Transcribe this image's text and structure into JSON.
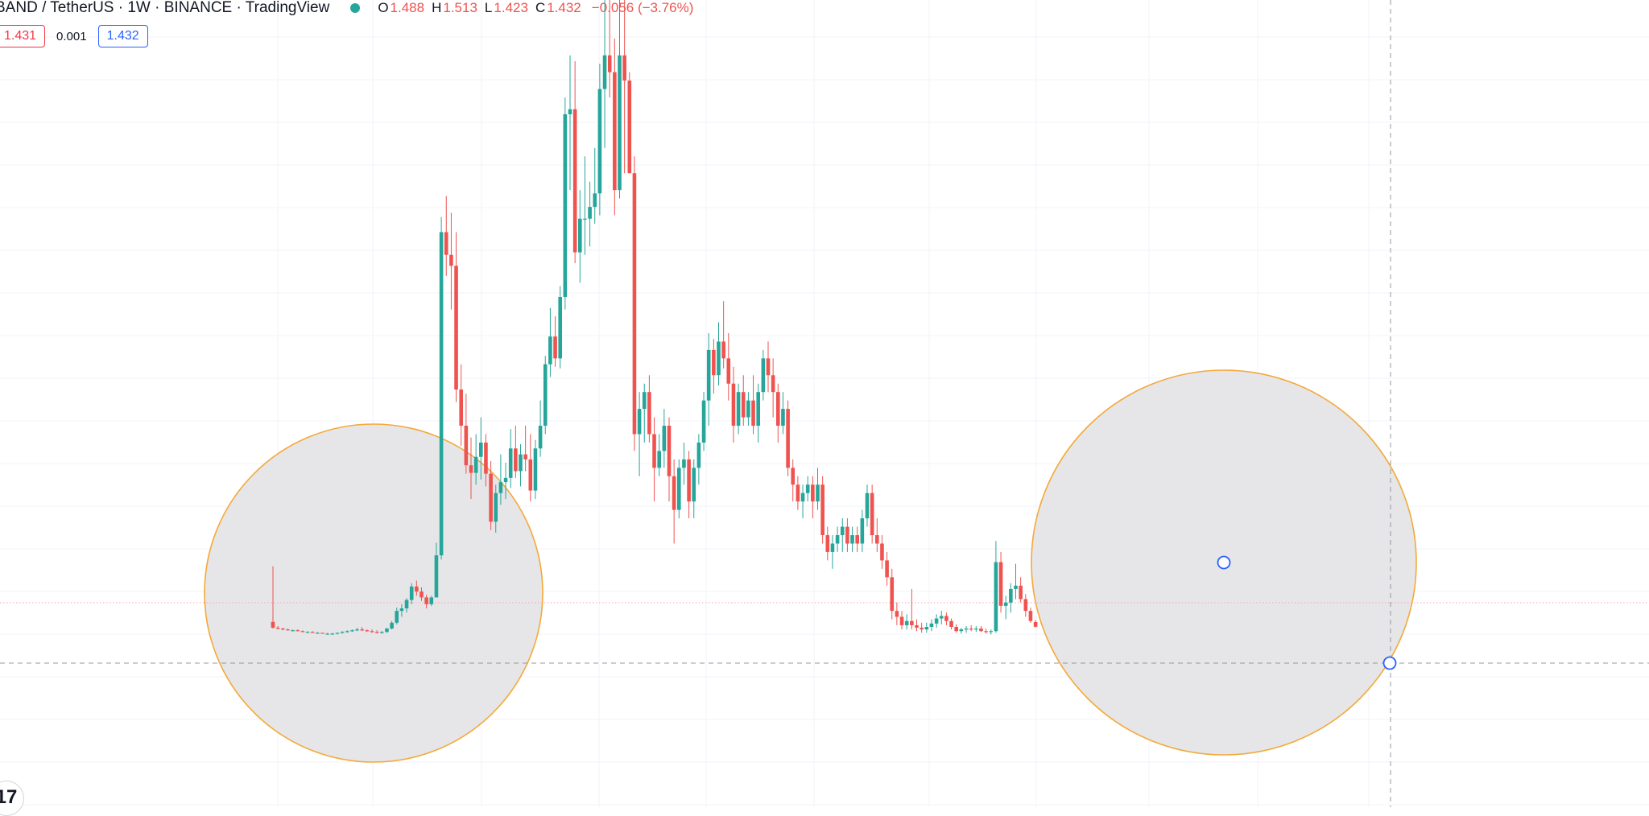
{
  "header": {
    "title": "BAND / TetherUS · 1W · BINANCE · TradingView",
    "status_color": "#26a69a",
    "ohlc": {
      "open_label": "O",
      "open": "1.488",
      "high_label": "H",
      "high": "1.513",
      "low_label": "L",
      "low": "1.423",
      "close_label": "C",
      "close": "1.432",
      "change": "−0.056 (−3.76%)"
    }
  },
  "price_boxes": {
    "bid": "1.431",
    "spread": "0.001",
    "ask": "1.432"
  },
  "colors": {
    "up": "#26a69a",
    "down": "#ef5350",
    "grid": "#f0f3fa",
    "circle_fill": "#e3e3e6",
    "circle_stroke": "#f4a93a",
    "handle": "#2962ff",
    "crosshair": "#9598a1",
    "price_line": "#f7a6a6",
    "text": "#131722",
    "bid_color": "#f23645",
    "ask_color": "#2962ff"
  },
  "logo": {
    "icon": "tradingview-logo-icon",
    "text": "17"
  },
  "chart_data": {
    "type": "candlestick",
    "candles": [
      [
        1.49,
        2.15,
        1.41,
        1.42
      ],
      [
        1.42,
        1.44,
        1.4,
        1.41
      ],
      [
        1.41,
        1.42,
        1.39,
        1.4
      ],
      [
        1.4,
        1.41,
        1.39,
        1.39
      ],
      [
        1.39,
        1.4,
        1.38,
        1.39
      ],
      [
        1.39,
        1.4,
        1.38,
        1.38
      ],
      [
        1.38,
        1.39,
        1.37,
        1.37
      ],
      [
        1.37,
        1.38,
        1.36,
        1.37
      ],
      [
        1.37,
        1.38,
        1.36,
        1.36
      ],
      [
        1.36,
        1.37,
        1.35,
        1.36
      ],
      [
        1.36,
        1.36,
        1.35,
        1.35
      ],
      [
        1.35,
        1.36,
        1.34,
        1.35
      ],
      [
        1.35,
        1.36,
        1.34,
        1.35
      ],
      [
        1.35,
        1.36,
        1.34,
        1.36
      ],
      [
        1.36,
        1.38,
        1.35,
        1.37
      ],
      [
        1.37,
        1.39,
        1.36,
        1.38
      ],
      [
        1.38,
        1.4,
        1.37,
        1.39
      ],
      [
        1.39,
        1.42,
        1.38,
        1.4
      ],
      [
        1.4,
        1.43,
        1.38,
        1.39
      ],
      [
        1.39,
        1.4,
        1.37,
        1.38
      ],
      [
        1.38,
        1.4,
        1.36,
        1.37
      ],
      [
        1.37,
        1.39,
        1.35,
        1.36
      ],
      [
        1.36,
        1.38,
        1.35,
        1.37
      ],
      [
        1.37,
        1.42,
        1.36,
        1.41
      ],
      [
        1.41,
        1.5,
        1.4,
        1.48
      ],
      [
        1.48,
        1.66,
        1.46,
        1.62
      ],
      [
        1.62,
        1.7,
        1.55,
        1.65
      ],
      [
        1.65,
        1.77,
        1.6,
        1.75
      ],
      [
        1.75,
        1.95,
        1.7,
        1.91
      ],
      [
        1.91,
        1.98,
        1.8,
        1.85
      ],
      [
        1.85,
        1.9,
        1.74,
        1.78
      ],
      [
        1.78,
        1.81,
        1.65,
        1.7
      ],
      [
        1.7,
        1.8,
        1.68,
        1.78
      ],
      [
        1.78,
        2.43,
        1.78,
        2.28
      ],
      [
        2.28,
        6.3,
        2.23,
        6.12
      ],
      [
        6.12,
        6.55,
        5.6,
        5.85
      ],
      [
        5.85,
        6.35,
        5.2,
        5.72
      ],
      [
        5.72,
        6.12,
        4.1,
        4.25
      ],
      [
        4.25,
        4.55,
        3.58,
        3.82
      ],
      [
        3.82,
        4.2,
        3.25,
        3.35
      ],
      [
        3.35,
        3.68,
        2.95,
        3.26
      ],
      [
        3.26,
        3.72,
        3.12,
        3.45
      ],
      [
        3.45,
        3.92,
        3.18,
        3.62
      ],
      [
        3.62,
        3.72,
        3.1,
        3.25
      ],
      [
        3.25,
        3.4,
        2.58,
        2.68
      ],
      [
        2.68,
        3.12,
        2.55,
        3.02
      ],
      [
        3.02,
        3.48,
        2.88,
        3.15
      ],
      [
        3.15,
        3.38,
        2.95,
        3.2
      ],
      [
        3.2,
        3.78,
        3.08,
        3.55
      ],
      [
        3.55,
        3.82,
        3.2,
        3.28
      ],
      [
        3.28,
        3.6,
        3.1,
        3.48
      ],
      [
        3.48,
        3.82,
        3.28,
        3.42
      ],
      [
        3.42,
        3.72,
        2.92,
        3.05
      ],
      [
        3.05,
        3.65,
        2.95,
        3.55
      ],
      [
        3.55,
        4.12,
        3.45,
        3.82
      ],
      [
        3.82,
        4.65,
        3.72,
        4.55
      ],
      [
        4.55,
        5.22,
        4.4,
        4.88
      ],
      [
        4.88,
        5.12,
        4.52,
        4.62
      ],
      [
        4.62,
        5.48,
        4.5,
        5.35
      ],
      [
        5.35,
        7.72,
        5.2,
        7.52
      ],
      [
        7.52,
        8.22,
        6.62,
        7.58
      ],
      [
        7.58,
        8.15,
        5.75,
        5.88
      ],
      [
        5.88,
        6.62,
        5.52,
        6.28
      ],
      [
        6.28,
        7.02,
        5.85,
        6.28
      ],
      [
        6.28,
        6.72,
        5.95,
        6.42
      ],
      [
        6.42,
        7.12,
        6.22,
        6.58
      ],
      [
        6.58,
        8.12,
        6.32,
        7.82
      ],
      [
        7.82,
        9.02,
        7.12,
        8.22
      ],
      [
        8.22,
        9.55,
        7.72,
        8.02
      ],
      [
        8.02,
        8.42,
        6.32,
        6.62
      ],
      [
        6.62,
        9.12,
        6.52,
        8.22
      ],
      [
        8.22,
        9.42,
        6.82,
        7.92
      ],
      [
        7.92,
        8.02,
        6.82,
        6.82
      ],
      [
        6.82,
        7.02,
        3.52,
        3.72
      ],
      [
        3.72,
        4.22,
        3.22,
        4.02
      ],
      [
        4.02,
        4.32,
        3.62,
        4.22
      ],
      [
        4.22,
        4.42,
        3.62,
        3.72
      ],
      [
        3.72,
        3.92,
        2.92,
        3.32
      ],
      [
        3.32,
        3.72,
        3.22,
        3.52
      ],
      [
        3.52,
        4.02,
        3.32,
        3.82
      ],
      [
        3.82,
        3.92,
        2.92,
        3.22
      ],
      [
        3.22,
        3.42,
        2.42,
        2.82
      ],
      [
        2.82,
        3.42,
        2.72,
        3.32
      ],
      [
        3.32,
        3.62,
        3.12,
        3.42
      ],
      [
        3.42,
        3.52,
        2.72,
        2.92
      ],
      [
        2.92,
        3.42,
        2.72,
        3.32
      ],
      [
        3.32,
        3.72,
        3.12,
        3.62
      ],
      [
        3.62,
        4.22,
        3.52,
        4.12
      ],
      [
        4.12,
        4.92,
        3.82,
        4.72
      ],
      [
        4.72,
        4.85,
        4.2,
        4.42
      ],
      [
        4.42,
        5.05,
        4.3,
        4.82
      ],
      [
        4.82,
        5.3,
        4.5,
        4.62
      ],
      [
        4.62,
        4.92,
        4.12,
        4.32
      ],
      [
        4.32,
        4.52,
        3.62,
        3.82
      ],
      [
        3.82,
        4.32,
        3.72,
        4.22
      ],
      [
        4.22,
        4.42,
        3.82,
        3.92
      ],
      [
        3.92,
        4.22,
        3.82,
        4.12
      ],
      [
        4.12,
        4.42,
        3.72,
        3.82
      ],
      [
        3.82,
        4.32,
        3.62,
        4.22
      ],
      [
        4.22,
        4.72,
        4.12,
        4.62
      ],
      [
        4.62,
        4.82,
        4.22,
        4.42
      ],
      [
        4.42,
        4.62,
        3.92,
        4.22
      ],
      [
        4.22,
        4.32,
        3.62,
        3.82
      ],
      [
        3.82,
        4.22,
        3.72,
        4.02
      ],
      [
        4.02,
        4.12,
        3.22,
        3.32
      ],
      [
        3.32,
        3.42,
        2.92,
        3.12
      ],
      [
        3.12,
        3.22,
        2.82,
        2.92
      ],
      [
        2.92,
        3.12,
        2.72,
        3.02
      ],
      [
        3.02,
        3.22,
        2.92,
        3.12
      ],
      [
        3.12,
        3.22,
        2.72,
        2.92
      ],
      [
        2.92,
        3.32,
        2.82,
        3.12
      ],
      [
        3.12,
        3.22,
        2.42,
        2.52
      ],
      [
        2.52,
        2.62,
        2.22,
        2.32
      ],
      [
        2.32,
        2.52,
        2.12,
        2.42
      ],
      [
        2.42,
        2.62,
        2.32,
        2.52
      ],
      [
        2.52,
        2.72,
        2.32,
        2.62
      ],
      [
        2.62,
        2.72,
        2.32,
        2.42
      ],
      [
        2.42,
        2.62,
        2.32,
        2.52
      ],
      [
        2.52,
        2.62,
        2.32,
        2.42
      ],
      [
        2.42,
        2.82,
        2.32,
        2.72
      ],
      [
        2.72,
        3.12,
        2.62,
        3.02
      ],
      [
        3.02,
        3.12,
        2.42,
        2.52
      ],
      [
        2.52,
        2.72,
        2.32,
        2.42
      ],
      [
        2.42,
        2.52,
        2.12,
        2.22
      ],
      [
        2.22,
        2.32,
        1.92,
        2.02
      ],
      [
        2.02,
        2.12,
        1.52,
        1.62
      ],
      [
        1.62,
        1.72,
        1.45,
        1.55
      ],
      [
        1.55,
        1.62,
        1.4,
        1.45
      ],
      [
        1.45,
        1.58,
        1.4,
        1.5
      ],
      [
        1.5,
        1.88,
        1.4,
        1.45
      ],
      [
        1.45,
        1.52,
        1.38,
        1.42
      ],
      [
        1.42,
        1.48,
        1.36,
        1.4
      ],
      [
        1.4,
        1.48,
        1.36,
        1.43
      ],
      [
        1.43,
        1.52,
        1.38,
        1.47
      ],
      [
        1.47,
        1.58,
        1.42,
        1.53
      ],
      [
        1.53,
        1.62,
        1.46,
        1.56
      ],
      [
        1.56,
        1.6,
        1.45,
        1.5
      ],
      [
        1.5,
        1.53,
        1.4,
        1.43
      ],
      [
        1.43,
        1.46,
        1.36,
        1.38
      ],
      [
        1.38,
        1.42,
        1.35,
        1.4
      ],
      [
        1.4,
        1.44,
        1.36,
        1.41
      ],
      [
        1.41,
        1.45,
        1.38,
        1.4
      ],
      [
        1.4,
        1.44,
        1.37,
        1.41
      ],
      [
        1.41,
        1.44,
        1.37,
        1.38
      ],
      [
        1.38,
        1.41,
        1.35,
        1.37
      ],
      [
        1.37,
        1.4,
        1.34,
        1.38
      ],
      [
        1.38,
        2.45,
        1.36,
        2.2
      ],
      [
        2.2,
        2.32,
        1.6,
        1.68
      ],
      [
        1.68,
        1.8,
        1.52,
        1.72
      ],
      [
        1.72,
        1.95,
        1.6,
        1.88
      ],
      [
        1.88,
        2.18,
        1.76,
        1.92
      ],
      [
        1.92,
        2.02,
        1.72,
        1.76
      ],
      [
        1.76,
        1.82,
        1.55,
        1.62
      ],
      [
        1.62,
        1.66,
        1.48,
        1.5
      ],
      [
        1.488,
        1.513,
        1.423,
        1.432
      ]
    ]
  }
}
